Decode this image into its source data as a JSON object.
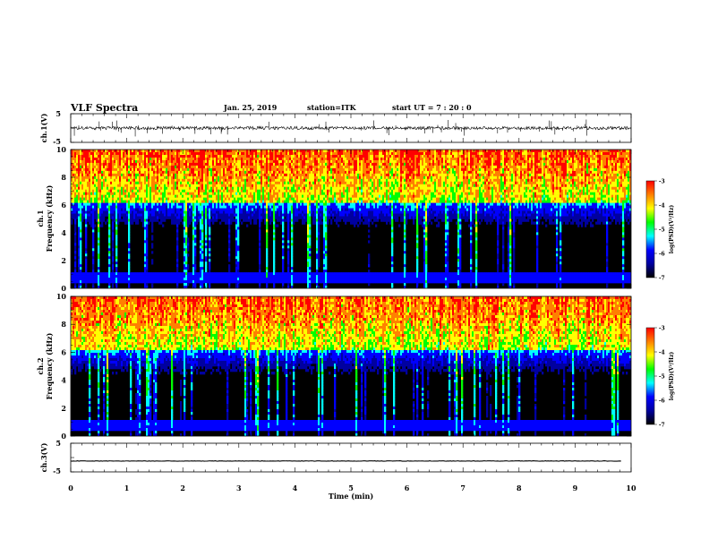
{
  "header": {
    "title": "VLF Spectra",
    "date": "Jan. 25, 2019",
    "station": "station=ITK",
    "start": "start UT = 7 : 20 : 0"
  },
  "colors": {
    "bg": "#000000",
    "trace": "#000000",
    "colormap": [
      "#000000",
      "#0000a0",
      "#0000ff",
      "#00ffff",
      "#00ff00",
      "#ffff00",
      "#ff8000",
      "#ff0000"
    ]
  },
  "chart_data": [
    {
      "id": "ch1-waveform",
      "type": "line",
      "ylabel": "ch.1(V)",
      "ylim": [
        -5,
        5
      ],
      "yticks": [
        "5",
        "-5"
      ],
      "baseline": 0
    },
    {
      "id": "ch1-spectrogram",
      "type": "heatmap",
      "ylabel": "ch.1",
      "ylabel2": "Frequency (kHz)",
      "ylim": [
        0,
        10
      ],
      "yticks": [
        "0",
        "2",
        "4",
        "6",
        "8",
        "10"
      ],
      "colorbar": {
        "label": "log(PSD)(V²/Hz)",
        "ticks": [
          "-3",
          "-4",
          "-5",
          "-6",
          "-7"
        ],
        "range": [
          -7,
          -3
        ]
      }
    },
    {
      "id": "ch2-spectrogram",
      "type": "heatmap",
      "ylabel": "ch.2",
      "ylabel2": "Frequency (kHz)",
      "ylim": [
        0,
        10
      ],
      "yticks": [
        "0",
        "2",
        "4",
        "6",
        "8",
        "10"
      ],
      "colorbar": {
        "label": "log(PSD)(V²/Hz)",
        "ticks": [
          "-3",
          "-4",
          "-5",
          "-6",
          "-7"
        ],
        "range": [
          -7,
          -3
        ]
      }
    },
    {
      "id": "ch3-waveform",
      "type": "line",
      "ylabel": "ch.3(V)",
      "ylim": [
        -5,
        5
      ],
      "yticks": [
        "5",
        "-5"
      ],
      "baseline": -1.2
    }
  ],
  "xaxis": {
    "label": "Time (min)",
    "range": [
      0,
      10
    ],
    "ticks": [
      "0",
      "1",
      "2",
      "3",
      "4",
      "5",
      "6",
      "7",
      "8",
      "9",
      "10"
    ]
  }
}
